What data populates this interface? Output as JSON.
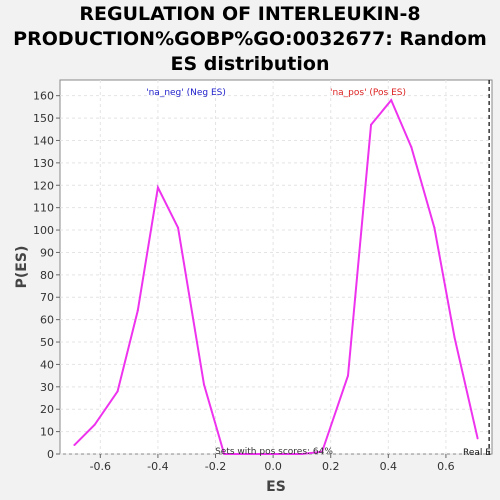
{
  "chart_data": {
    "type": "line",
    "title": [
      "REGULATION OF INTERLEUKIN-8",
      "PRODUCTION%GOBP%GO:0032677: Random",
      "ES distribution"
    ],
    "xlabel": "ES",
    "ylabel": "P(ES)",
    "xlim": [
      -0.74,
      0.76
    ],
    "ylim": [
      0,
      167
    ],
    "xticks": [
      -0.6,
      -0.4,
      -0.2,
      0.0,
      0.2,
      0.4,
      0.6
    ],
    "xtick_labels": [
      "-0.6",
      "-0.4",
      "-0.2",
      "0.0",
      "0.2",
      "0.4",
      "0.6"
    ],
    "yticks": [
      0,
      10,
      20,
      30,
      40,
      50,
      60,
      70,
      80,
      90,
      100,
      110,
      120,
      130,
      140,
      150,
      160
    ],
    "ytick_labels": [
      "0",
      "10",
      "20",
      "30",
      "40",
      "50",
      "60",
      "70",
      "80",
      "90",
      "100",
      "110",
      "120",
      "130",
      "140",
      "150",
      "160"
    ],
    "grid": true,
    "series": [
      {
        "color": "#ee33ee",
        "points": [
          [
            -0.69,
            4
          ],
          [
            -0.62,
            13
          ],
          [
            -0.54,
            28
          ],
          [
            -0.47,
            64
          ],
          [
            -0.4,
            119
          ],
          [
            -0.33,
            101
          ],
          [
            -0.24,
            31
          ],
          [
            -0.17,
            0
          ],
          [
            -0.1,
            0
          ],
          [
            0.1,
            0
          ],
          [
            0.17,
            1
          ],
          [
            0.26,
            35
          ],
          [
            0.34,
            147
          ],
          [
            0.41,
            158
          ],
          [
            0.48,
            137
          ],
          [
            0.56,
            101
          ],
          [
            0.63,
            52
          ],
          [
            0.71,
            7
          ]
        ]
      }
    ],
    "annotations": {
      "neg_label": "'na_neg' (Neg ES)",
      "pos_label": "'na_pos' (Pos ES)",
      "sets_label": "Sets with pos scores: 64%",
      "real_label": "Real E"
    },
    "colors": {
      "neg_label": "#2222cc",
      "pos_label": "#dd2222",
      "sets_label": "#333333"
    },
    "real_es_marker": {
      "x": 0.75
    }
  }
}
